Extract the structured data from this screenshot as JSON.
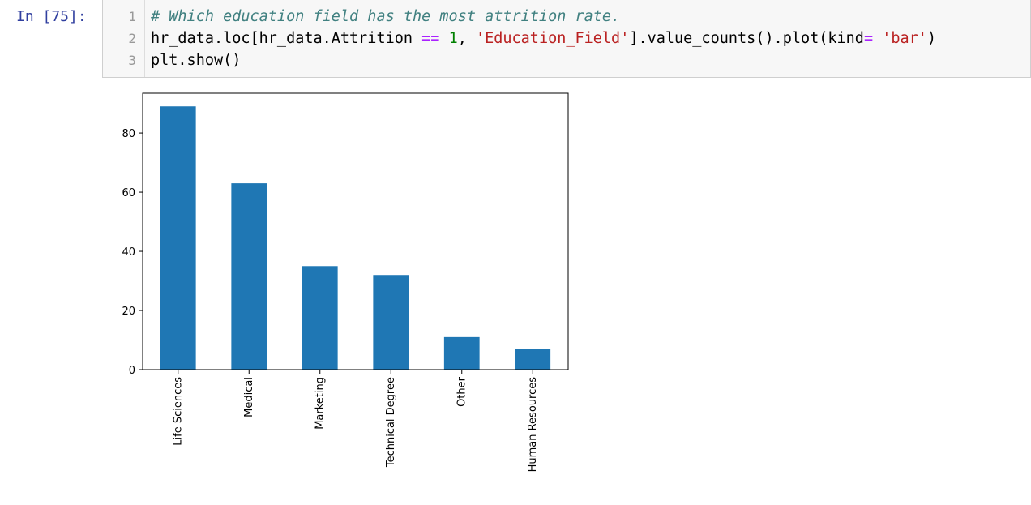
{
  "cell": {
    "prompt": "In [75]:",
    "line_numbers": [
      "1",
      "2",
      "3"
    ],
    "lines": [
      [
        {
          "text": "# Which education field has the most attrition rate.",
          "kind": "comment"
        }
      ],
      [
        {
          "text": "hr_data.loc[hr_data.Attrition ",
          "kind": "plain"
        },
        {
          "text": "==",
          "kind": "op"
        },
        {
          "text": " ",
          "kind": "plain"
        },
        {
          "text": "1",
          "kind": "num"
        },
        {
          "text": ", ",
          "kind": "plain"
        },
        {
          "text": "'Education_Field'",
          "kind": "str"
        },
        {
          "text": "].value_counts().plot(kind",
          "kind": "plain"
        },
        {
          "text": "=",
          "kind": "op"
        },
        {
          "text": " ",
          "kind": "plain"
        },
        {
          "text": "'bar'",
          "kind": "str"
        },
        {
          "text": ")",
          "kind": "plain"
        }
      ],
      [
        {
          "text": "plt.show()",
          "kind": "plain"
        }
      ]
    ]
  },
  "colors": {
    "prompt": "#303f9f",
    "comment": "#408080",
    "operator": "#aa22ff",
    "number": "#008000",
    "string": "#ba2121",
    "bar": "#1f77b4"
  },
  "chart_data": {
    "type": "bar",
    "categories": [
      "Life Sciences",
      "Medical",
      "Marketing",
      "Technical Degree",
      "Other",
      "Human Resources"
    ],
    "values": [
      89,
      63,
      35,
      32,
      11,
      7
    ],
    "yticks": [
      0,
      20,
      40,
      60,
      80
    ],
    "ylim": [
      0,
      93.45
    ],
    "title": "",
    "xlabel": "",
    "ylabel": "",
    "grid": false,
    "legend": "none"
  }
}
